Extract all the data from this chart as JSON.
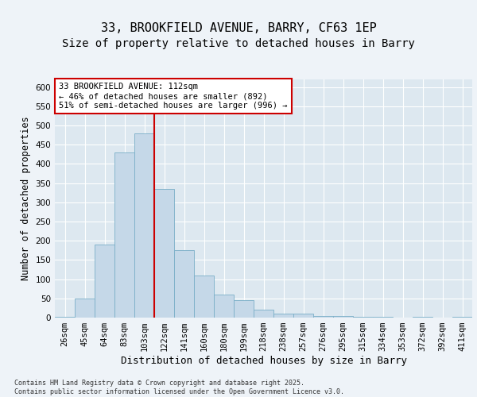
{
  "title1": "33, BROOKFIELD AVENUE, BARRY, CF63 1EP",
  "title2": "Size of property relative to detached houses in Barry",
  "xlabel": "Distribution of detached houses by size in Barry",
  "ylabel": "Number of detached properties",
  "categories": [
    "26sqm",
    "45sqm",
    "64sqm",
    "83sqm",
    "103sqm",
    "122sqm",
    "141sqm",
    "160sqm",
    "180sqm",
    "199sqm",
    "218sqm",
    "238sqm",
    "257sqm",
    "276sqm",
    "295sqm",
    "315sqm",
    "334sqm",
    "353sqm",
    "372sqm",
    "392sqm",
    "411sqm"
  ],
  "values": [
    3,
    50,
    190,
    430,
    480,
    335,
    175,
    110,
    60,
    45,
    20,
    10,
    10,
    5,
    5,
    3,
    2,
    1,
    3,
    1,
    3
  ],
  "bar_color": "#c5d8e8",
  "bar_edge_color": "#7aafc8",
  "vline_x": 4.5,
  "vline_color": "#cc0000",
  "annotation_text": "33 BROOKFIELD AVENUE: 112sqm\n← 46% of detached houses are smaller (892)\n51% of semi-detached houses are larger (996) →",
  "annotation_box_facecolor": "#ffffff",
  "annotation_box_edgecolor": "#cc0000",
  "ylim": [
    0,
    620
  ],
  "yticks": [
    0,
    50,
    100,
    150,
    200,
    250,
    300,
    350,
    400,
    450,
    500,
    550,
    600
  ],
  "fig_background": "#eef3f8",
  "plot_bg_color": "#dde8f0",
  "grid_color": "#ffffff",
  "footer_text": "Contains HM Land Registry data © Crown copyright and database right 2025.\nContains public sector information licensed under the Open Government Licence v3.0.",
  "title1_fontsize": 11,
  "title2_fontsize": 10,
  "xlabel_fontsize": 9,
  "ylabel_fontsize": 8.5,
  "tick_fontsize": 7.5,
  "ann_fontsize": 7.5,
  "footer_fontsize": 6
}
